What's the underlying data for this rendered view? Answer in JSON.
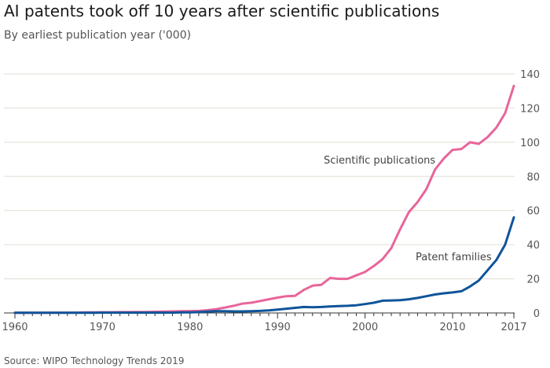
{
  "header": {
    "title": "AI patents took off 10 years after scientific publications",
    "subtitle": "By earliest publication year ('000)"
  },
  "footer": {
    "source": "Source: WIPO Technology Trends 2019"
  },
  "colors": {
    "publications": "#e8659b",
    "patents": "#0f5499",
    "grid": "#e3ddd4",
    "axis": "#333333"
  },
  "chart_data": {
    "type": "line",
    "xlim": [
      1960,
      2017
    ],
    "ylim": [
      0,
      140
    ],
    "x_ticks": [
      1960,
      1970,
      1980,
      1990,
      2000,
      2010,
      2017
    ],
    "y_ticks": [
      0,
      20,
      40,
      60,
      80,
      100,
      120,
      140
    ],
    "grid": true,
    "series": [
      {
        "name": "Scientific publications",
        "color": "#e8659b",
        "x": [
          1960,
          1961,
          1962,
          1963,
          1964,
          1965,
          1966,
          1967,
          1968,
          1969,
          1970,
          1971,
          1972,
          1973,
          1974,
          1975,
          1976,
          1977,
          1978,
          1979,
          1980,
          1981,
          1982,
          1983,
          1984,
          1985,
          1986,
          1987,
          1988,
          1989,
          1990,
          1991,
          1992,
          1993,
          1994,
          1995,
          1996,
          1997,
          1998,
          1999,
          2000,
          2001,
          2002,
          2003,
          2004,
          2005,
          2006,
          2007,
          2008,
          2009,
          2010,
          2011,
          2012,
          2013,
          2014,
          2015,
          2016,
          2017
        ],
        "values": [
          0.1,
          0.1,
          0.1,
          0.1,
          0.2,
          0.2,
          0.2,
          0.2,
          0.3,
          0.3,
          0.4,
          0.4,
          0.5,
          0.5,
          0.6,
          0.6,
          0.7,
          0.8,
          0.9,
          1.0,
          1.1,
          1.2,
          1.6,
          2.2,
          3.2,
          4.2,
          5.5,
          6.0,
          7.0,
          8.0,
          9.0,
          9.8,
          10.0,
          13.5,
          16.0,
          16.5,
          20.5,
          20.0,
          20.0,
          22.0,
          24.0,
          27.5,
          31.5,
          38.0,
          49.0,
          59.0,
          65.0,
          72.5,
          84.0,
          90.5,
          95.5,
          96.0,
          100.0,
          99.0,
          103.0,
          108.5,
          117.0,
          133.0
        ]
      },
      {
        "name": "Patent families",
        "color": "#0f5499",
        "x": [
          1960,
          1961,
          1962,
          1963,
          1964,
          1965,
          1966,
          1967,
          1968,
          1969,
          1970,
          1971,
          1972,
          1973,
          1974,
          1975,
          1976,
          1977,
          1978,
          1979,
          1980,
          1981,
          1982,
          1983,
          1984,
          1985,
          1986,
          1987,
          1988,
          1989,
          1990,
          1991,
          1992,
          1993,
          1994,
          1995,
          1996,
          1997,
          1998,
          1999,
          2000,
          2001,
          2002,
          2003,
          2004,
          2005,
          2006,
          2007,
          2008,
          2009,
          2010,
          2011,
          2012,
          2013,
          2014,
          2015,
          2016,
          2017
        ],
        "values": [
          0.1,
          0.1,
          0.1,
          0.1,
          0.1,
          0.1,
          0.1,
          0.1,
          0.1,
          0.1,
          0.2,
          0.2,
          0.2,
          0.2,
          0.2,
          0.2,
          0.2,
          0.2,
          0.2,
          0.3,
          0.3,
          0.5,
          0.8,
          1.0,
          1.0,
          0.9,
          0.9,
          1.0,
          1.2,
          1.5,
          2.0,
          2.5,
          3.0,
          3.5,
          3.3,
          3.5,
          3.8,
          4.0,
          4.2,
          4.5,
          5.2,
          6.0,
          7.2,
          7.3,
          7.5,
          8.0,
          8.8,
          9.8,
          10.8,
          11.5,
          12.0,
          12.7,
          15.5,
          19.0,
          25.0,
          31.0,
          40.0,
          56.0
        ]
      }
    ]
  }
}
